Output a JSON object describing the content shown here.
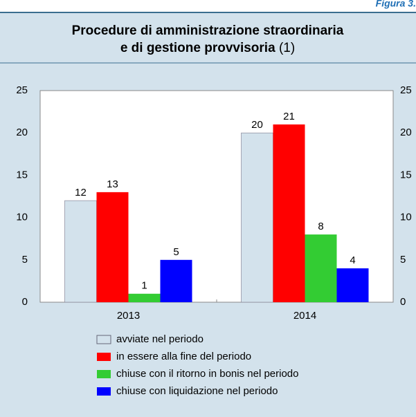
{
  "figure_label": "Figura 3.",
  "chart_data": {
    "type": "bar",
    "title_lines": [
      "Procedure di amministrazione straordinaria",
      "e di gestione provvisoria"
    ],
    "title_note": "(1)",
    "categories": [
      "2013",
      "2014"
    ],
    "series": [
      {
        "name": "avviate nel periodo",
        "color": "#d3e2ec",
        "values": [
          12,
          20
        ]
      },
      {
        "name": "in essere alla fine del periodo",
        "color": "#ff0000",
        "values": [
          13,
          21
        ]
      },
      {
        "name": "chiuse con il ritorno in bonis nel periodo",
        "color": "#33cc33",
        "values": [
          1,
          8
        ]
      },
      {
        "name": "chiuse con liquidazione nel periodo",
        "color": "#0000ff",
        "values": [
          5,
          4
        ]
      }
    ],
    "ylim": [
      0,
      25
    ],
    "yticks": [
      0,
      5,
      10,
      15,
      20,
      25
    ],
    "secondary_tick_labels": true,
    "grid": false
  }
}
